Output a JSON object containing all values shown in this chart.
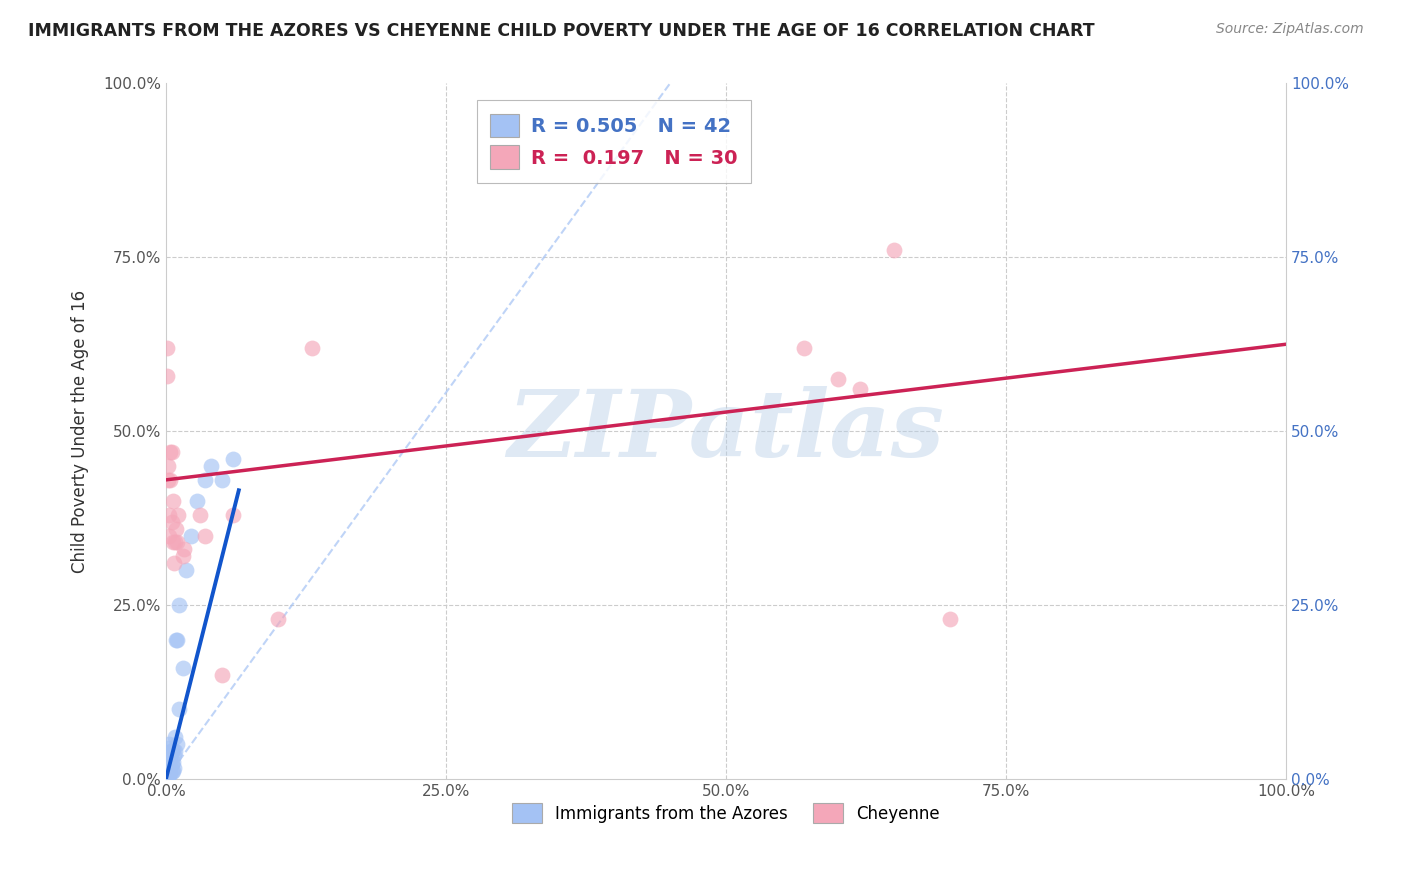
{
  "title": "IMMIGRANTS FROM THE AZORES VS CHEYENNE CHILD POVERTY UNDER THE AGE OF 16 CORRELATION CHART",
  "source": "Source: ZipAtlas.com",
  "ylabel": "Child Poverty Under the Age of 16",
  "xlim": [
    0,
    1
  ],
  "ylim": [
    0,
    1
  ],
  "xticks": [
    0.0,
    0.25,
    0.5,
    0.75,
    1.0
  ],
  "yticks": [
    0.0,
    0.25,
    0.5,
    0.75,
    1.0
  ],
  "xtick_labels": [
    "0.0%",
    "25.0%",
    "50.0%",
    "75.0%",
    "100.0%"
  ],
  "ytick_labels_left": [
    "0.0%",
    "25.0%",
    "50.0%",
    "75.0%",
    "100.0%"
  ],
  "ytick_labels_right": [
    "0.0%",
    "25.0%",
    "50.0%",
    "75.0%",
    "100.0%"
  ],
  "legend1_label": "Immigrants from the Azores",
  "legend2_label": "Cheyenne",
  "r1": "0.505",
  "n1": 42,
  "r2": "0.197",
  "n2": 30,
  "blue_color": "#a4c2f4",
  "pink_color": "#f4a7b9",
  "blue_line_color": "#1155cc",
  "pink_line_color": "#cc2255",
  "diag_line_color": "#a4c2f4",
  "watermark": "ZIPatlas",
  "watermark_color": "#b8cfe8",
  "background_color": "#ffffff",
  "blue_dots": [
    [
      0.001,
      0.005
    ],
    [
      0.001,
      0.01
    ],
    [
      0.001,
      0.015
    ],
    [
      0.002,
      0.003
    ],
    [
      0.002,
      0.008
    ],
    [
      0.002,
      0.013
    ],
    [
      0.002,
      0.018
    ],
    [
      0.002,
      0.025
    ],
    [
      0.002,
      0.03
    ],
    [
      0.002,
      0.045
    ],
    [
      0.003,
      0.005
    ],
    [
      0.003,
      0.012
    ],
    [
      0.003,
      0.02
    ],
    [
      0.003,
      0.028
    ],
    [
      0.003,
      0.038
    ],
    [
      0.003,
      0.05
    ],
    [
      0.004,
      0.008
    ],
    [
      0.004,
      0.018
    ],
    [
      0.004,
      0.03
    ],
    [
      0.005,
      0.01
    ],
    [
      0.005,
      0.022
    ],
    [
      0.005,
      0.04
    ],
    [
      0.006,
      0.012
    ],
    [
      0.006,
      0.025
    ],
    [
      0.006,
      0.042
    ],
    [
      0.007,
      0.015
    ],
    [
      0.007,
      0.035
    ],
    [
      0.008,
      0.04
    ],
    [
      0.008,
      0.06
    ],
    [
      0.009,
      0.2
    ],
    [
      0.01,
      0.05
    ],
    [
      0.01,
      0.2
    ],
    [
      0.012,
      0.1
    ],
    [
      0.012,
      0.25
    ],
    [
      0.015,
      0.16
    ],
    [
      0.018,
      0.3
    ],
    [
      0.022,
      0.35
    ],
    [
      0.028,
      0.4
    ],
    [
      0.035,
      0.43
    ],
    [
      0.04,
      0.45
    ],
    [
      0.05,
      0.43
    ],
    [
      0.06,
      0.46
    ]
  ],
  "pink_dots": [
    [
      0.001,
      0.62
    ],
    [
      0.001,
      0.58
    ],
    [
      0.002,
      0.45
    ],
    [
      0.002,
      0.43
    ],
    [
      0.003,
      0.38
    ],
    [
      0.003,
      0.35
    ],
    [
      0.004,
      0.43
    ],
    [
      0.004,
      0.47
    ],
    [
      0.005,
      0.37
    ],
    [
      0.005,
      0.47
    ],
    [
      0.006,
      0.34
    ],
    [
      0.006,
      0.4
    ],
    [
      0.007,
      0.31
    ],
    [
      0.008,
      0.34
    ],
    [
      0.009,
      0.36
    ],
    [
      0.01,
      0.34
    ],
    [
      0.011,
      0.38
    ],
    [
      0.015,
      0.32
    ],
    [
      0.016,
      0.33
    ],
    [
      0.03,
      0.38
    ],
    [
      0.035,
      0.35
    ],
    [
      0.05,
      0.15
    ],
    [
      0.06,
      0.38
    ],
    [
      0.1,
      0.23
    ],
    [
      0.13,
      0.62
    ],
    [
      0.57,
      0.62
    ],
    [
      0.6,
      0.575
    ],
    [
      0.62,
      0.56
    ],
    [
      0.65,
      0.76
    ],
    [
      0.7,
      0.23
    ]
  ],
  "blue_trendline_x": [
    0.0,
    0.065
  ],
  "blue_trendline_y": [
    0.0,
    0.415
  ],
  "pink_trendline_x": [
    0.0,
    1.0
  ],
  "pink_trendline_y": [
    0.43,
    0.625
  ],
  "diag_line_x": [
    0.0,
    0.45
  ],
  "diag_line_y": [
    0.0,
    1.0
  ]
}
